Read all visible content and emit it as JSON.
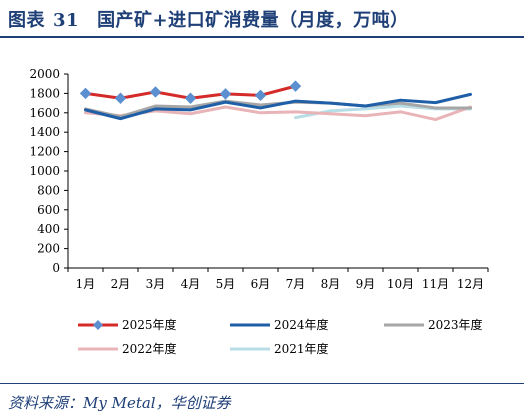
{
  "header": {
    "prefix": "图表",
    "number": "31",
    "title": "国产矿+进口矿消费量（月度，万吨）"
  },
  "source": "资料来源：My Metal，华创证券",
  "chart_data": {
    "type": "line",
    "categories": [
      "1月",
      "2月",
      "3月",
      "4月",
      "5月",
      "6月",
      "7月",
      "8月",
      "9月",
      "10月",
      "11月",
      "12月"
    ],
    "ylim": [
      0,
      2000
    ],
    "yticks": [
      0,
      200,
      400,
      600,
      800,
      1000,
      1200,
      1400,
      1600,
      1800,
      2000
    ],
    "grid": false,
    "legend_position": "bottom",
    "series": [
      {
        "name": "2025年度",
        "color": "#d42a2a",
        "marker": "diamond",
        "values": [
          1800,
          1750,
          1815,
          1750,
          1795,
          1780,
          1875,
          null,
          null,
          null,
          null,
          null
        ]
      },
      {
        "name": "2024年度",
        "color": "#1f5fa8",
        "marker": "none",
        "values": [
          1630,
          1540,
          1640,
          1630,
          1710,
          1650,
          1720,
          1700,
          1670,
          1730,
          1705,
          1790
        ]
      },
      {
        "name": "2023年度",
        "color": "#a6a6a6",
        "marker": "none",
        "values": [
          1640,
          1560,
          1670,
          1660,
          1720,
          1680,
          1710,
          1700,
          1670,
          1700,
          1650,
          1650
        ]
      },
      {
        "name": "2022年度",
        "color": "#e8b4b8",
        "marker": "none",
        "values": [
          1600,
          1570,
          1620,
          1590,
          1660,
          1600,
          1610,
          1590,
          1570,
          1610,
          1530,
          1660
        ]
      },
      {
        "name": "2021年度",
        "color": "#b7dde6",
        "marker": "none",
        "values": [
          null,
          null,
          null,
          null,
          null,
          null,
          1550,
          1620,
          1640,
          1670,
          1640,
          1640
        ]
      }
    ]
  }
}
